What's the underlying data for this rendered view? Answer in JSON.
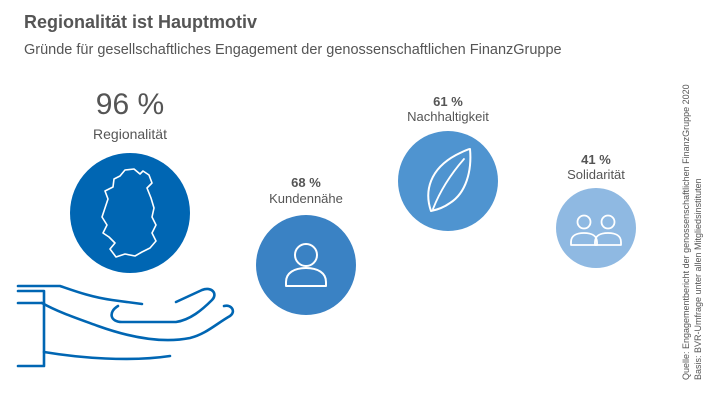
{
  "title": "Regionalität ist Hauptmotiv",
  "subtitle": "Gründe für gesellschaftliches Engagement der genossenschaftlichen FinanzGruppe",
  "chart_data": {
    "type": "bubble",
    "unit": "%",
    "categories": [
      "Regionalität",
      "Kundennähe",
      "Nachhaltigkeit",
      "Solidarität"
    ],
    "values": [
      96,
      68,
      61,
      41
    ],
    "value_labels": [
      "96 %",
      "68 %",
      "61 %",
      "41 %"
    ],
    "icons": [
      "germany-map-icon",
      "person-icon",
      "leaf-icon",
      "people-icon"
    ],
    "colors": [
      "#0066b3",
      "#3a82c4",
      "#4f94d0",
      "#8fb9e2"
    ]
  },
  "source_lines": [
    "Quelle: Engagementbericht der genossenschaftlichen FinanzGruppe 2020",
    "Basis: BVR-Umfrage unter allen Mitgliedsinstituten"
  ]
}
